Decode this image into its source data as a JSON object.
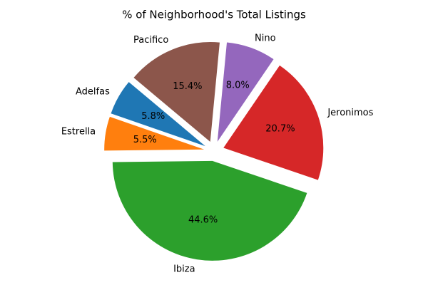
{
  "chart_data": {
    "type": "pie",
    "title": "% of Neighborhood's Total Listings",
    "categories": [
      "Adelfas",
      "Estrella",
      "Ibiza",
      "Jeronimos",
      "Nino",
      "Pacifico"
    ],
    "values": [
      5.8,
      5.5,
      44.6,
      20.7,
      8.0,
      15.4
    ],
    "value_labels": [
      "5.8%",
      "5.5%",
      "44.6%",
      "20.7%",
      "8.0%",
      "15.4%"
    ],
    "colors": [
      "#1f77b4",
      "#ff7f0e",
      "#2ca02c",
      "#d62728",
      "#9467bd",
      "#8c564b"
    ],
    "startangle": 140,
    "explode": [
      0.1,
      0.1,
      0.1,
      0.1,
      0.1,
      0.1
    ]
  }
}
